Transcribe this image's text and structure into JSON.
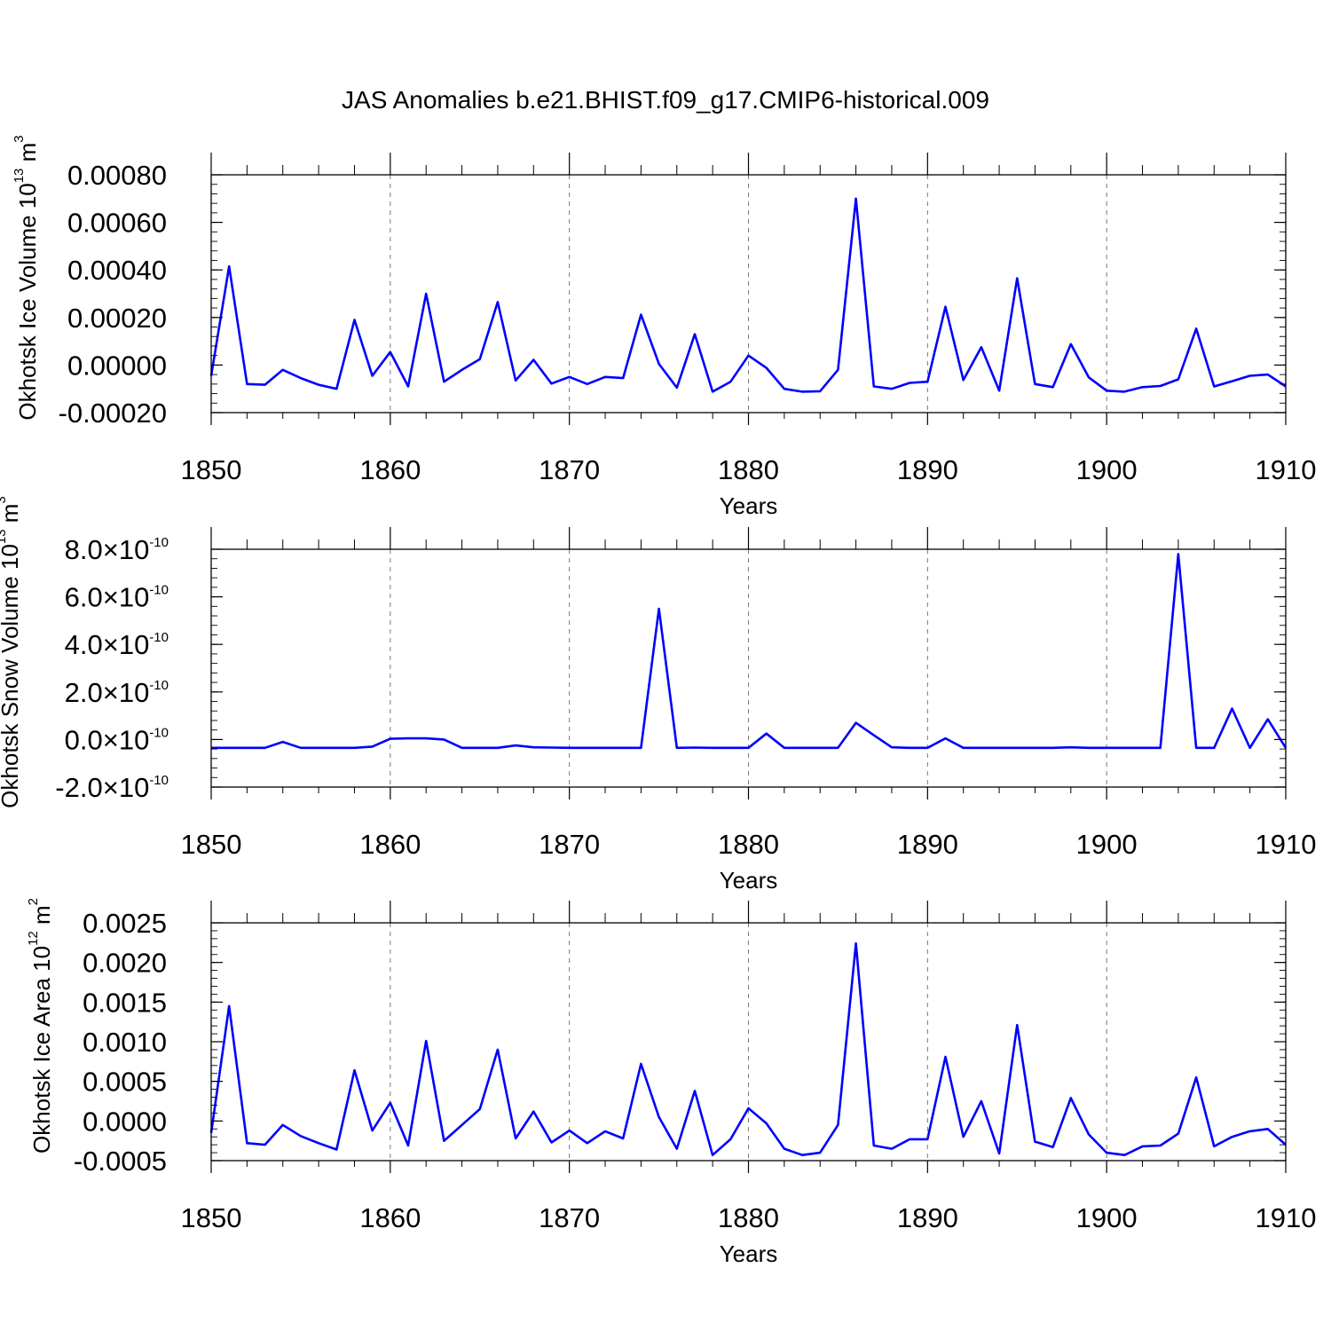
{
  "chart_data": [
    {
      "type": "line",
      "title": "JAS Anomalies b.e21.BHIST.f09_g17.CMIP6-historical.009",
      "xlabel": "Years",
      "ylabel": {
        "text": "Okhotsk Ice Volume 10",
        "exp": "13",
        "unit": " m",
        "unit_exp": "3"
      },
      "xlim": [
        1850,
        1910
      ],
      "ylim": [
        -0.0002,
        0.0008
      ],
      "x_ticks": [
        1850,
        1860,
        1870,
        1880,
        1890,
        1900,
        1910
      ],
      "x_tick_labels": [
        "1850",
        "1860",
        "1870",
        "1880",
        "1890",
        "1900",
        "1910"
      ],
      "y_ticks": [
        -0.0002,
        0,
        0.0002,
        0.0004,
        0.0006,
        0.0008
      ],
      "y_tick_labels": [
        {
          "mant": "-0.00020",
          "exp": ""
        },
        {
          "mant": "0.00000",
          "exp": ""
        },
        {
          "mant": "0.00020",
          "exp": ""
        },
        {
          "mant": "0.00040",
          "exp": ""
        },
        {
          "mant": "0.00060",
          "exp": ""
        },
        {
          "mant": "0.00080",
          "exp": ""
        }
      ],
      "y_minor_step": 4e-05,
      "vertical_dashed_grid": [
        1860,
        1870,
        1880,
        1890,
        1900
      ],
      "series": [
        {
          "name": "Okhotsk Ice Volume",
          "color": "#0000ff",
          "x": [
            1850,
            1851,
            1852,
            1853,
            1854,
            1855,
            1856,
            1857,
            1858,
            1859,
            1860,
            1861,
            1862,
            1863,
            1864,
            1865,
            1866,
            1867,
            1868,
            1869,
            1870,
            1871,
            1872,
            1873,
            1874,
            1875,
            1876,
            1877,
            1878,
            1879,
            1880,
            1881,
            1882,
            1883,
            1884,
            1885,
            1886,
            1887,
            1888,
            1889,
            1890,
            1891,
            1892,
            1893,
            1894,
            1895,
            1896,
            1897,
            1898,
            1899,
            1900,
            1901,
            1902,
            1903,
            1904,
            1905,
            1906,
            1907,
            1908,
            1909,
            1910
          ],
          "values": [
            -4.5e-05,
            0.000415,
            -8e-05,
            -8.3e-05,
            -2e-05,
            -5.5e-05,
            -8.3e-05,
            -0.0001,
            0.00019,
            -4.5e-05,
            5.5e-05,
            -9e-05,
            0.0003,
            -7e-05,
            -2e-05,
            2.5e-05,
            0.000265,
            -6.5e-05,
            2.2e-05,
            -7.8e-05,
            -5e-05,
            -8e-05,
            -5e-05,
            -5.5e-05,
            0.000212,
            5e-06,
            -9.5e-05,
            0.00013,
            -0.000112,
            -7e-05,
            4e-05,
            -1.2e-05,
            -0.0001,
            -0.000112,
            -0.00011,
            -2e-05,
            0.0007,
            -9e-05,
            -0.0001,
            -7.5e-05,
            -7e-05,
            0.000245,
            -6.3e-05,
            7.5e-05,
            -0.000108,
            0.000365,
            -8e-05,
            -9.3e-05,
            8.8e-05,
            -5.2e-05,
            -0.000108,
            -0.000112,
            -9.3e-05,
            -8.8e-05,
            -6e-05,
            0.000153,
            -9e-05,
            -6.8e-05,
            -4.5e-05,
            -4e-05,
            -9e-05
          ]
        }
      ]
    },
    {
      "type": "line",
      "xlabel": "Years",
      "ylabel": {
        "text": "Okhotsk Snow Volume 10",
        "exp": "13",
        "unit": " m",
        "unit_exp": "3"
      },
      "xlim": [
        1850,
        1910
      ],
      "ylim": [
        -2e-10,
        8e-10
      ],
      "x_ticks": [
        1850,
        1860,
        1870,
        1880,
        1890,
        1900,
        1910
      ],
      "x_tick_labels": [
        "1850",
        "1860",
        "1870",
        "1880",
        "1890",
        "1900",
        "1910"
      ],
      "y_ticks": [
        -2e-10,
        0,
        2e-10,
        4e-10,
        6e-10,
        8e-10
      ],
      "y_tick_labels": [
        {
          "mant": "-2.0",
          "times": "×",
          "base": "10",
          "exp": "-10"
        },
        {
          "mant": "0.0",
          "times": "×",
          "base": "10",
          "exp": "-10"
        },
        {
          "mant": "2.0",
          "times": "×",
          "base": "10",
          "exp": "-10"
        },
        {
          "mant": "4.0",
          "times": "×",
          "base": "10",
          "exp": "-10"
        },
        {
          "mant": "6.0",
          "times": "×",
          "base": "10",
          "exp": "-10"
        },
        {
          "mant": "8.0",
          "times": "×",
          "base": "10",
          "exp": "-10"
        }
      ],
      "y_minor_step": 4e-11,
      "vertical_dashed_grid": [
        1860,
        1870,
        1880,
        1890,
        1900
      ],
      "series": [
        {
          "name": "Okhotsk Snow Volume",
          "color": "#0000ff",
          "x": [
            1850,
            1851,
            1852,
            1853,
            1854,
            1855,
            1856,
            1857,
            1858,
            1859,
            1860,
            1861,
            1862,
            1863,
            1864,
            1865,
            1866,
            1867,
            1868,
            1869,
            1870,
            1871,
            1872,
            1873,
            1874,
            1875,
            1876,
            1877,
            1878,
            1879,
            1880,
            1881,
            1882,
            1883,
            1884,
            1885,
            1886,
            1887,
            1888,
            1889,
            1890,
            1891,
            1892,
            1893,
            1894,
            1895,
            1896,
            1897,
            1898,
            1899,
            1900,
            1901,
            1902,
            1903,
            1904,
            1905,
            1906,
            1907,
            1908,
            1909,
            1910
          ],
          "values": [
            -3.5e-11,
            -3.5e-11,
            -3.5e-11,
            -3.5e-11,
            -1e-11,
            -3.5e-11,
            -3.5e-11,
            -3.5e-11,
            -3.5e-11,
            -3e-11,
            3e-12,
            5e-12,
            5e-12,
            0,
            -3.5e-11,
            -3.5e-11,
            -3.5e-11,
            -2.5e-11,
            -3.3e-11,
            -3.4e-11,
            -3.5e-11,
            -3.5e-11,
            -3.5e-11,
            -3.5e-11,
            -3.5e-11,
            5.5e-10,
            -3.5e-11,
            -3.4e-11,
            -3.5e-11,
            -3.5e-11,
            -3.5e-11,
            2.5e-11,
            -3.5e-11,
            -3.5e-11,
            -3.5e-11,
            -3.5e-11,
            7e-11,
            1.8e-11,
            -3.3e-11,
            -3.5e-11,
            -3.5e-11,
            5e-12,
            -3.5e-11,
            -3.5e-11,
            -3.5e-11,
            -3.5e-11,
            -3.5e-11,
            -3.5e-11,
            -3.3e-11,
            -3.5e-11,
            -3.5e-11,
            -3.5e-11,
            -3.5e-11,
            -3.5e-11,
            7.8e-10,
            -3.5e-11,
            -3.5e-11,
            1.3e-10,
            -3.5e-11,
            8.5e-11,
            -3.5e-11
          ]
        }
      ]
    },
    {
      "type": "line",
      "xlabel": "Years",
      "ylabel": {
        "text": "Okhotsk Ice Area 10",
        "exp": "12",
        "unit": " m",
        "unit_exp": "2"
      },
      "xlim": [
        1850,
        1910
      ],
      "ylim": [
        -0.0005,
        0.0025
      ],
      "x_ticks": [
        1850,
        1860,
        1870,
        1880,
        1890,
        1900,
        1910
      ],
      "x_tick_labels": [
        "1850",
        "1860",
        "1870",
        "1880",
        "1890",
        "1900",
        "1910"
      ],
      "y_ticks": [
        -0.0005,
        0,
        0.0005,
        0.001,
        0.0015,
        0.002,
        0.0025
      ],
      "y_tick_labels": [
        {
          "mant": "-0.0005",
          "exp": ""
        },
        {
          "mant": "0.0000",
          "exp": ""
        },
        {
          "mant": "0.0005",
          "exp": ""
        },
        {
          "mant": "0.0010",
          "exp": ""
        },
        {
          "mant": "0.0015",
          "exp": ""
        },
        {
          "mant": "0.0020",
          "exp": ""
        },
        {
          "mant": "0.0025",
          "exp": ""
        }
      ],
      "y_minor_step": 0.0001,
      "vertical_dashed_grid": [
        1860,
        1870,
        1880,
        1890,
        1900
      ],
      "series": [
        {
          "name": "Okhotsk Ice Area",
          "color": "#0000ff",
          "x": [
            1850,
            1851,
            1852,
            1853,
            1854,
            1855,
            1856,
            1857,
            1858,
            1859,
            1860,
            1861,
            1862,
            1863,
            1864,
            1865,
            1866,
            1867,
            1868,
            1869,
            1870,
            1871,
            1872,
            1873,
            1874,
            1875,
            1876,
            1877,
            1878,
            1879,
            1880,
            1881,
            1882,
            1883,
            1884,
            1885,
            1886,
            1887,
            1888,
            1889,
            1890,
            1891,
            1892,
            1893,
            1894,
            1895,
            1896,
            1897,
            1898,
            1899,
            1900,
            1901,
            1902,
            1903,
            1904,
            1905,
            1906,
            1907,
            1908,
            1909,
            1910
          ],
          "values": [
            -0.00015,
            0.00145,
            -0.00028,
            -0.0003,
            -5e-05,
            -0.00019,
            -0.00028,
            -0.00036,
            0.00064,
            -0.00012,
            0.00023,
            -0.00031,
            0.00101,
            -0.00025,
            -5e-05,
            0.00015,
            0.0009,
            -0.00022,
            0.00012,
            -0.00027,
            -0.00012,
            -0.00028,
            -0.00013,
            -0.00022,
            0.00072,
            5e-05,
            -0.00035,
            0.00038,
            -0.00043,
            -0.00023,
            0.00016,
            -3e-05,
            -0.00035,
            -0.00043,
            -0.0004,
            -5e-05,
            0.00224,
            -0.00031,
            -0.00035,
            -0.00023,
            -0.00023,
            0.00081,
            -0.0002,
            0.00025,
            -0.00041,
            0.00121,
            -0.00026,
            -0.00033,
            0.00029,
            -0.00017,
            -0.0004,
            -0.00043,
            -0.00032,
            -0.00031,
            -0.00016,
            0.00055,
            -0.00032,
            -0.0002,
            -0.00013,
            -0.0001,
            -0.0003
          ]
        }
      ]
    }
  ]
}
